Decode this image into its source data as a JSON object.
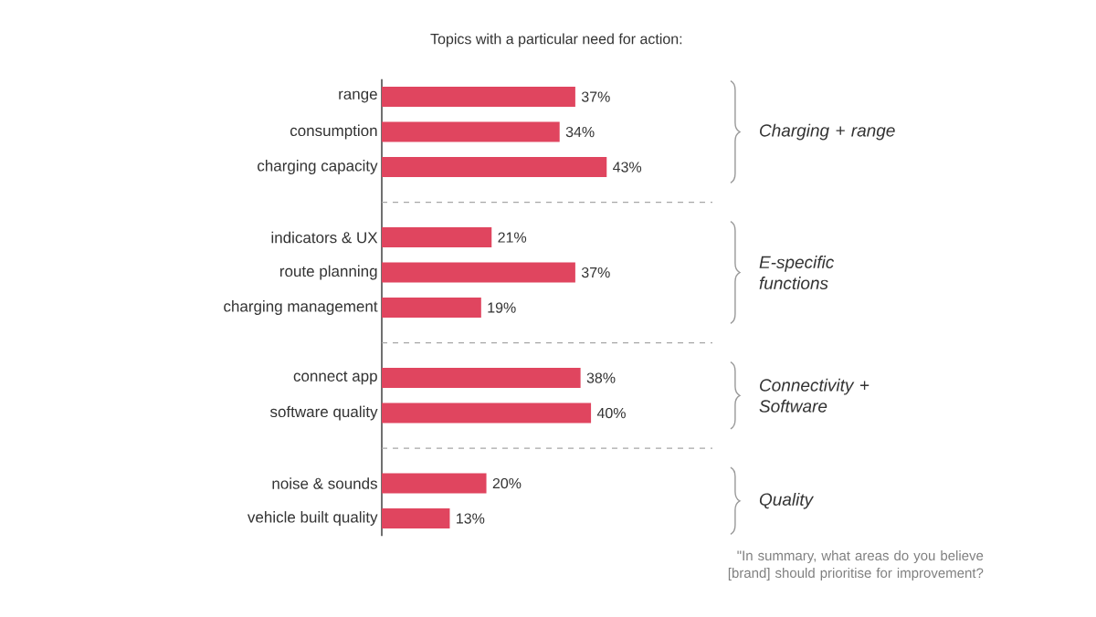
{
  "chart_data": {
    "type": "bar",
    "orientation": "horizontal",
    "title": "Topics with a particular need for action:",
    "categories": [
      "range",
      "consumption",
      "charging capacity",
      null,
      "indicators & UX",
      "route planning",
      "charging management",
      null,
      "connect app",
      "software quality",
      null,
      "noise & sounds",
      "vehicle built quality"
    ],
    "values": [
      37,
      34,
      43,
      null,
      21,
      37,
      19,
      null,
      38,
      40,
      null,
      20,
      13
    ],
    "value_labels": [
      "37%",
      "34%",
      "43%",
      null,
      "21%",
      "37%",
      "19%",
      null,
      "38%",
      "40%",
      null,
      "20%",
      "13%"
    ],
    "color": "#e0455f",
    "annotations": [
      "Charging + range",
      "E-specific functions",
      "Connectivity + Software",
      "Quality",
      "\"In summary, what areas do you believe [brand] should prioritise for improvement?"
    ]
  }
}
